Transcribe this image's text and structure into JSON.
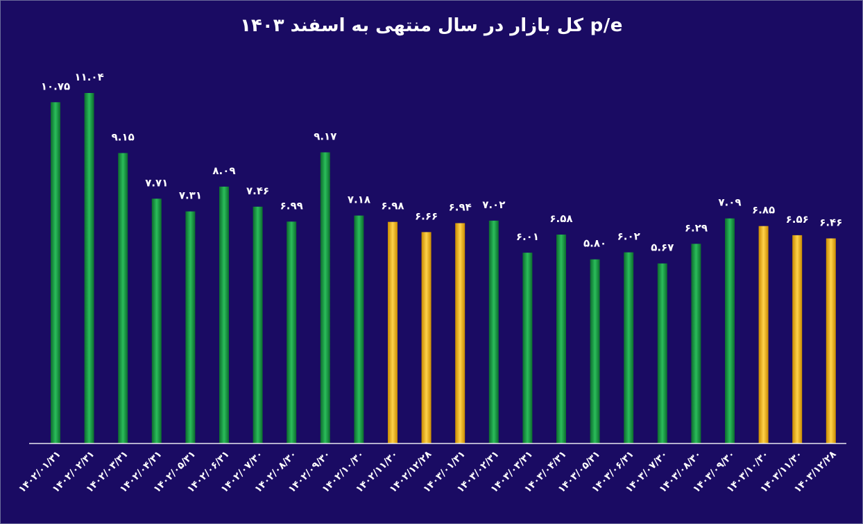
{
  "chart_data": {
    "type": "bar",
    "title": "p/e کل بازار در سال منتهی به اسفند ۱۴۰۳",
    "xlabel": "",
    "ylabel": "",
    "ylim": [
      0,
      11.5
    ],
    "grid": false,
    "categories": [
      "۱۴۰۲/۰۱/۳۱",
      "۱۴۰۲/۰۲/۳۱",
      "۱۴۰۲/۰۳/۳۱",
      "۱۴۰۲/۰۴/۳۱",
      "۱۴۰۲/۰۵/۳۱",
      "۱۴۰۲/۰۶/۳۱",
      "۱۴۰۲/۰۷/۳۰",
      "۱۴۰۲/۰۸/۳۰",
      "۱۴۰۲/۰۹/۳۰",
      "۱۴۰۲/۱۰/۳۰",
      "۱۴۰۲/۱۱/۳۰",
      "۱۴۰۲/۱۲/۲۸",
      "۱۴۰۳/۰۱/۳۱",
      "۱۴۰۳/۰۲/۳۱",
      "۱۴۰۳/۰۳/۳۱",
      "۱۴۰۳/۰۴/۳۱",
      "۱۴۰۳/۰۵/۳۱",
      "۱۴۰۳/۰۶/۳۱",
      "۱۴۰۳/۰۷/۳۰",
      "۱۴۰۳/۰۸/۳۰",
      "۱۴۰۳/۰۹/۳۰",
      "۱۴۰۳/۱۰/۳۰",
      "۱۴۰۳/۱۱/۳۰",
      "۱۴۰۳/۱۲/۲۸"
    ],
    "values": [
      10.75,
      11.04,
      9.15,
      7.71,
      7.31,
      8.09,
      7.46,
      6.99,
      9.17,
      7.18,
      6.98,
      6.66,
      6.94,
      7.02,
      6.01,
      6.58,
      5.8,
      6.02,
      5.67,
      6.29,
      7.09,
      6.85,
      6.56,
      6.46
    ],
    "value_labels": [
      "۱۰.۷۵",
      "۱۱.۰۴",
      "۹.۱۵",
      "۷.۷۱",
      "۷.۳۱",
      "۸.۰۹",
      "۷.۴۶",
      "۶.۹۹",
      "۹.۱۷",
      "۷.۱۸",
      "۶.۹۸",
      "۶.۶۶",
      "۶.۹۴",
      "۷.۰۲",
      "۶.۰۱",
      "۶.۵۸",
      "۵.۸۰",
      "۶.۰۲",
      "۵.۶۷",
      "۶.۲۹",
      "۷.۰۹",
      "۶.۸۵",
      "۶.۵۶",
      "۶.۴۶"
    ],
    "bar_colors": [
      "green",
      "green",
      "green",
      "green",
      "green",
      "green",
      "green",
      "green",
      "green",
      "green",
      "gold",
      "gold",
      "gold",
      "green",
      "green",
      "green",
      "green",
      "green",
      "green",
      "green",
      "green",
      "gold",
      "gold",
      "gold"
    ],
    "palette": {
      "green": "#1a9e4a",
      "gold": "#f2b51c",
      "background": "#1a0b63",
      "axis": "#e8e8f0",
      "text": "#ffffff"
    }
  }
}
